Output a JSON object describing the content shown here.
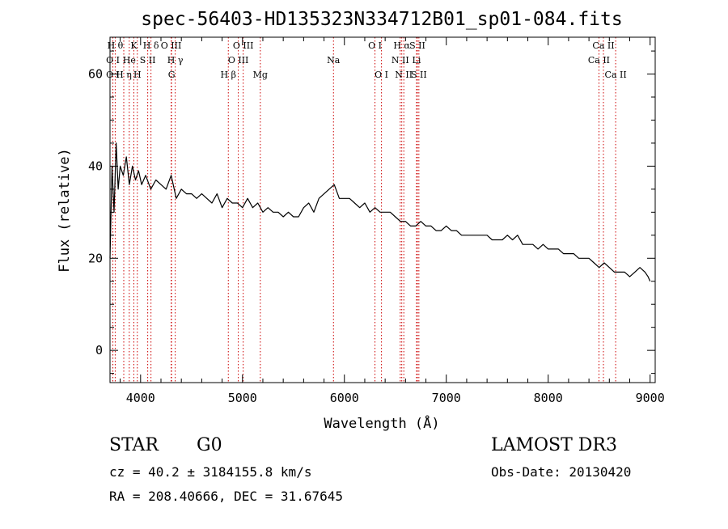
{
  "colors": {
    "spectrum": "#000000",
    "line_marker": "#cc0000",
    "axis": "#000000"
  },
  "chart_data": {
    "type": "line",
    "title": "spec-56403-HD135323N334712B01_sp01-084.fits",
    "xlabel": "Wavelength (Å)",
    "ylabel": "Flux (relative)",
    "xlim": [
      3700,
      9050
    ],
    "ylim": [
      -7,
      68
    ],
    "x_ticks": [
      4000,
      5000,
      6000,
      7000,
      8000,
      9000
    ],
    "x_tick_labels": [
      "4000",
      "5000",
      "6000",
      "7000",
      "8000",
      "9000"
    ],
    "y_ticks": [
      0,
      20,
      40,
      60
    ],
    "y_tick_labels": [
      "0",
      "20",
      "40",
      "60"
    ],
    "series": [
      {
        "name": "flux",
        "x": [
          3700,
          3720,
          3740,
          3760,
          3780,
          3800,
          3830,
          3860,
          3890,
          3920,
          3950,
          3980,
          4010,
          4050,
          4100,
          4150,
          4200,
          4250,
          4300,
          4350,
          4400,
          4450,
          4500,
          4550,
          4600,
          4650,
          4700,
          4750,
          4800,
          4850,
          4900,
          4950,
          5000,
          5050,
          5100,
          5150,
          5200,
          5250,
          5300,
          5350,
          5400,
          5450,
          5500,
          5550,
          5600,
          5650,
          5700,
          5750,
          5800,
          5850,
          5900,
          5950,
          6000,
          6050,
          6100,
          6150,
          6200,
          6250,
          6300,
          6350,
          6400,
          6450,
          6500,
          6550,
          6600,
          6650,
          6700,
          6750,
          6800,
          6850,
          6900,
          6950,
          7000,
          7050,
          7100,
          7150,
          7200,
          7250,
          7300,
          7350,
          7400,
          7450,
          7500,
          7550,
          7600,
          7650,
          7700,
          7750,
          7800,
          7850,
          7900,
          7950,
          8000,
          8050,
          8100,
          8150,
          8200,
          8250,
          8300,
          8350,
          8400,
          8450,
          8500,
          8550,
          8600,
          8650,
          8700,
          8750,
          8800,
          8850,
          8900,
          8950,
          8980,
          9000
        ],
        "values": [
          20,
          40,
          30,
          45,
          35,
          40,
          38,
          42,
          36,
          40,
          37,
          39,
          36,
          38,
          35,
          37,
          36,
          35,
          38,
          33,
          35,
          34,
          34,
          33,
          34,
          33,
          32,
          34,
          31,
          33,
          32,
          32,
          31,
          33,
          31,
          32,
          30,
          31,
          30,
          30,
          29,
          30,
          29,
          29,
          31,
          32,
          30,
          33,
          34,
          35,
          36,
          33,
          33,
          33,
          32,
          31,
          32,
          30,
          31,
          30,
          30,
          30,
          29,
          28,
          28,
          27,
          27,
          28,
          27,
          27,
          26,
          26,
          27,
          26,
          26,
          25,
          25,
          25,
          25,
          25,
          25,
          24,
          24,
          24,
          25,
          24,
          25,
          23,
          23,
          23,
          22,
          23,
          22,
          22,
          22,
          21,
          21,
          21,
          20,
          20,
          20,
          19,
          18,
          19,
          18,
          17,
          17,
          17,
          16,
          17,
          18,
          17,
          16,
          15
        ]
      }
    ],
    "annotations": [
      {
        "label": "O I",
        "x": 3728,
        "row": 2
      },
      {
        "label": "O I",
        "x": 3728,
        "row": 1
      },
      {
        "label": "H θ",
        "x": 3751,
        "row": 0
      },
      {
        "label": "H η",
        "x": 3835,
        "row": 2
      },
      {
        "label": "He",
        "x": 3889,
        "row": 1
      },
      {
        "label": "K",
        "x": 3934,
        "row": 0
      },
      {
        "label": "H",
        "x": 3968,
        "row": 2
      },
      {
        "label": "S II",
        "x": 4070,
        "row": 1
      },
      {
        "label": "H δ",
        "x": 4102,
        "row": 0
      },
      {
        "label": "O III",
        "x": 4300,
        "row": 0
      },
      {
        "label": "G",
        "x": 4304,
        "row": 2
      },
      {
        "label": "H γ",
        "x": 4340,
        "row": 1
      },
      {
        "label": "H β",
        "x": 4861,
        "row": 2
      },
      {
        "label": "O III",
        "x": 4959,
        "row": 1
      },
      {
        "label": "O III",
        "x": 5007,
        "row": 0
      },
      {
        "label": "Mg",
        "x": 5175,
        "row": 2
      },
      {
        "label": "Na",
        "x": 5893,
        "row": 1
      },
      {
        "label": "O I",
        "x": 6300,
        "row": 0
      },
      {
        "label": "O I",
        "x": 6364,
        "row": 2
      },
      {
        "label": "N II",
        "x": 6548,
        "row": 1
      },
      {
        "label": "H α",
        "x": 6563,
        "row": 0
      },
      {
        "label": "N II",
        "x": 6583,
        "row": 2
      },
      {
        "label": "Li",
        "x": 6708,
        "row": 1
      },
      {
        "label": "S II",
        "x": 6716,
        "row": 0
      },
      {
        "label": "S II",
        "x": 6731,
        "row": 2
      },
      {
        "label": "Ca II",
        "x": 8498,
        "row": 1
      },
      {
        "label": "Ca II",
        "x": 8542,
        "row": 0
      },
      {
        "label": "Ca II",
        "x": 8662,
        "row": 2
      }
    ]
  },
  "footer": {
    "object_class": "STAR",
    "spec_type": "G0",
    "survey": "LAMOST DR3",
    "cz": "cz = 40.2 ± 3184155.8 km/s",
    "obs_date": "Obs-Date: 20130420",
    "radec": "RA = 208.40666, DEC =  31.67645"
  }
}
